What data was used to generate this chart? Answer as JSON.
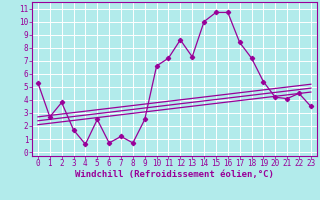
{
  "xlabel": "Windchill (Refroidissement éolien,°C)",
  "background_color": "#b2ebeb",
  "grid_color": "#ffffff",
  "line_color": "#990099",
  "xlim": [
    -0.5,
    23.5
  ],
  "ylim": [
    -0.3,
    11.5
  ],
  "xticks": [
    0,
    1,
    2,
    3,
    4,
    5,
    6,
    7,
    8,
    9,
    10,
    11,
    12,
    13,
    14,
    15,
    16,
    17,
    18,
    19,
    20,
    21,
    22,
    23
  ],
  "yticks": [
    0,
    1,
    2,
    3,
    4,
    5,
    6,
    7,
    8,
    9,
    10,
    11
  ],
  "jagged_x": [
    0,
    1,
    2,
    3,
    4,
    5,
    6,
    7,
    8,
    9,
    10,
    11,
    12,
    13,
    14,
    15,
    16,
    17,
    18,
    19,
    20,
    21,
    22,
    23
  ],
  "jagged_y": [
    5.3,
    2.7,
    3.8,
    1.7,
    0.6,
    2.5,
    0.7,
    1.2,
    0.7,
    2.5,
    6.6,
    7.2,
    8.6,
    7.3,
    10.0,
    10.7,
    10.7,
    8.4,
    7.2,
    5.4,
    4.2,
    4.1,
    4.5,
    3.5
  ],
  "trend1_x": [
    0,
    23
  ],
  "trend1_y": [
    2.7,
    5.2
  ],
  "trend2_x": [
    0,
    23
  ],
  "trend2_y": [
    2.4,
    4.9
  ],
  "trend3_x": [
    0,
    23
  ],
  "trend3_y": [
    2.1,
    4.6
  ],
  "xlabel_fontsize": 6.5,
  "tick_fontsize": 5.5
}
